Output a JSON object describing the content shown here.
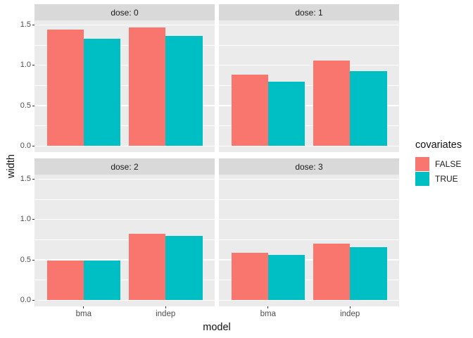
{
  "chart_data": {
    "type": "bar",
    "title": "",
    "xlabel": "model",
    "ylabel": "width",
    "legend_title": "covariates",
    "faceting": {
      "variable": "dose",
      "layout": "2x2"
    },
    "categories": [
      "bma",
      "indep"
    ],
    "series_names": [
      "FALSE",
      "TRUE"
    ],
    "y_ticks": [
      0,
      0.5,
      1,
      1.5
    ],
    "y_tick_labels": [
      "0.0",
      "0.5",
      "1.0",
      "1.5"
    ],
    "y_minor_ticks": [
      0.25,
      0.75,
      1.25
    ],
    "ylim": [
      -0.075,
      1.555
    ],
    "grid": true,
    "legend_position": "right",
    "facets": [
      {
        "label": "dose: 0",
        "series": [
          {
            "name": "FALSE",
            "values": [
              1.44,
              1.47
            ]
          },
          {
            "name": "TRUE",
            "values": [
              1.33,
              1.36
            ]
          }
        ]
      },
      {
        "label": "dose: 1",
        "series": [
          {
            "name": "FALSE",
            "values": [
              0.88,
              1.06
            ]
          },
          {
            "name": "TRUE",
            "values": [
              0.8,
              0.93
            ]
          }
        ]
      },
      {
        "label": "dose: 2",
        "series": [
          {
            "name": "FALSE",
            "values": [
              0.49,
              0.82
            ]
          },
          {
            "name": "TRUE",
            "values": [
              0.49,
              0.8
            ]
          }
        ]
      },
      {
        "label": "dose: 3",
        "series": [
          {
            "name": "FALSE",
            "values": [
              0.59,
              0.7
            ]
          },
          {
            "name": "TRUE",
            "values": [
              0.56,
              0.66
            ]
          }
        ]
      }
    ],
    "colors": {
      "FALSE": "#F8766D",
      "TRUE": "#00BFC4",
      "panel_background": "#EBEBEB",
      "strip_background": "#D9D9D9",
      "gridline": "#FFFFFF",
      "tick_text": "#4D4D4D",
      "title_text": "#1A1A1A"
    }
  }
}
